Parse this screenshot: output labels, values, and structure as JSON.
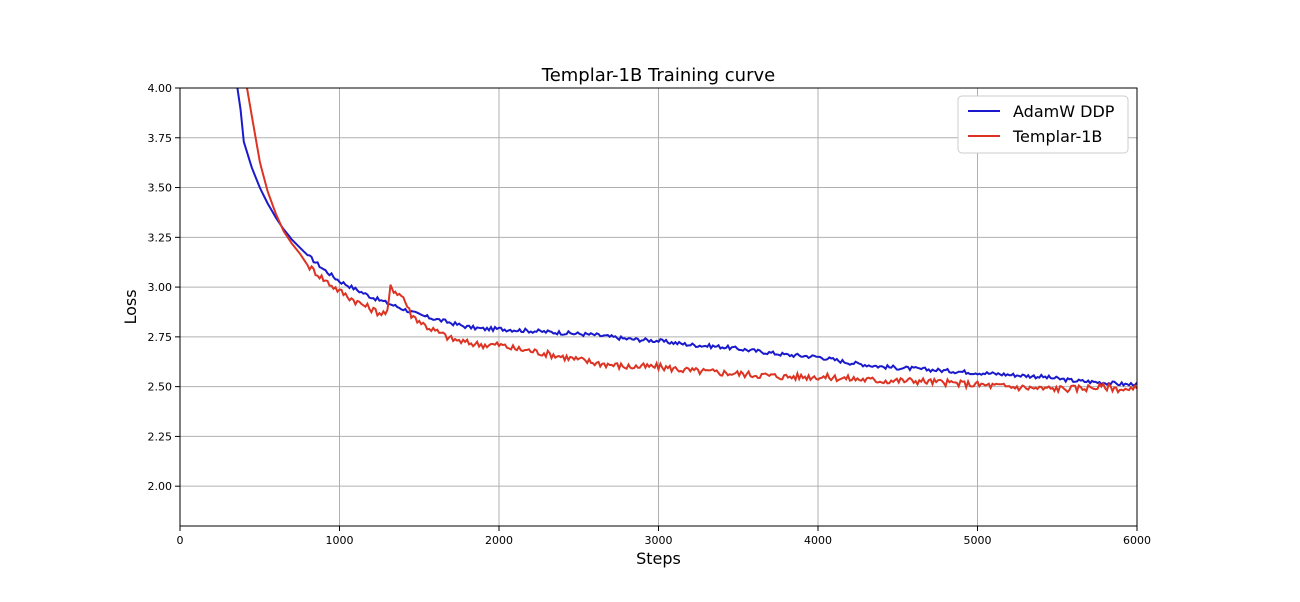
{
  "chart_data": {
    "type": "line",
    "title": "Templar-1B Training curve",
    "xlabel": "Steps",
    "ylabel": "Loss",
    "xlim": [
      0,
      6000
    ],
    "ylim": [
      1.8,
      4.0
    ],
    "xticks": [
      0,
      1000,
      2000,
      3000,
      4000,
      5000,
      6000
    ],
    "xtick_labels": [
      "0",
      "1000",
      "2000",
      "3000",
      "4000",
      "5000",
      "6000"
    ],
    "yticks": [
      2.0,
      2.25,
      2.5,
      2.75,
      3.0,
      3.25,
      3.5,
      3.75,
      4.0
    ],
    "ytick_labels": [
      "2.00",
      "2.25",
      "2.50",
      "2.75",
      "3.00",
      "3.25",
      "3.50",
      "3.75",
      "4.00"
    ],
    "grid": true,
    "legend_position": "top-right",
    "series": [
      {
        "name": "AdamW DDP",
        "color": "#1a1acc",
        "x": [
          360,
          380,
          400,
          450,
          500,
          550,
          600,
          650,
          700,
          750,
          800,
          900,
          1000,
          1100,
          1200,
          1300,
          1400,
          1500,
          1600,
          1700,
          1800,
          1900,
          2000,
          2200,
          2400,
          2600,
          2800,
          3000,
          3200,
          3400,
          3600,
          3800,
          4000,
          4200,
          4400,
          4600,
          4800,
          5000,
          5200,
          5400,
          5600,
          5800,
          5950,
          6000
        ],
        "y": [
          4.0,
          3.89,
          3.73,
          3.6,
          3.5,
          3.42,
          3.35,
          3.29,
          3.24,
          3.2,
          3.16,
          3.09,
          3.03,
          2.99,
          2.95,
          2.92,
          2.89,
          2.86,
          2.84,
          2.82,
          2.8,
          2.79,
          2.79,
          2.78,
          2.77,
          2.76,
          2.74,
          2.73,
          2.71,
          2.7,
          2.68,
          2.66,
          2.65,
          2.62,
          2.6,
          2.59,
          2.58,
          2.57,
          2.56,
          2.55,
          2.53,
          2.52,
          2.51,
          2.52
        ]
      },
      {
        "name": "Templar-1B",
        "color": "#dd3322",
        "x": [
          420,
          450,
          500,
          550,
          600,
          650,
          700,
          750,
          800,
          900,
          1000,
          1100,
          1200,
          1250,
          1300,
          1320,
          1350,
          1400,
          1450,
          1500,
          1550,
          1600,
          1700,
          1800,
          1900,
          2000,
          2100,
          2200,
          2400,
          2600,
          2800,
          3000,
          3200,
          3400,
          3600,
          3800,
          4000,
          4200,
          4400,
          4600,
          4800,
          5000,
          5200,
          5400,
          5600,
          5800,
          5950,
          6000
        ],
        "y": [
          4.0,
          3.86,
          3.63,
          3.48,
          3.37,
          3.28,
          3.22,
          3.17,
          3.11,
          3.04,
          2.98,
          2.93,
          2.89,
          2.87,
          2.87,
          3.0,
          2.98,
          2.95,
          2.86,
          2.83,
          2.8,
          2.78,
          2.74,
          2.72,
          2.71,
          2.71,
          2.69,
          2.68,
          2.65,
          2.62,
          2.6,
          2.6,
          2.58,
          2.57,
          2.56,
          2.55,
          2.55,
          2.54,
          2.53,
          2.53,
          2.52,
          2.51,
          2.5,
          2.49,
          2.49,
          2.5,
          2.48,
          2.49
        ]
      }
    ]
  }
}
